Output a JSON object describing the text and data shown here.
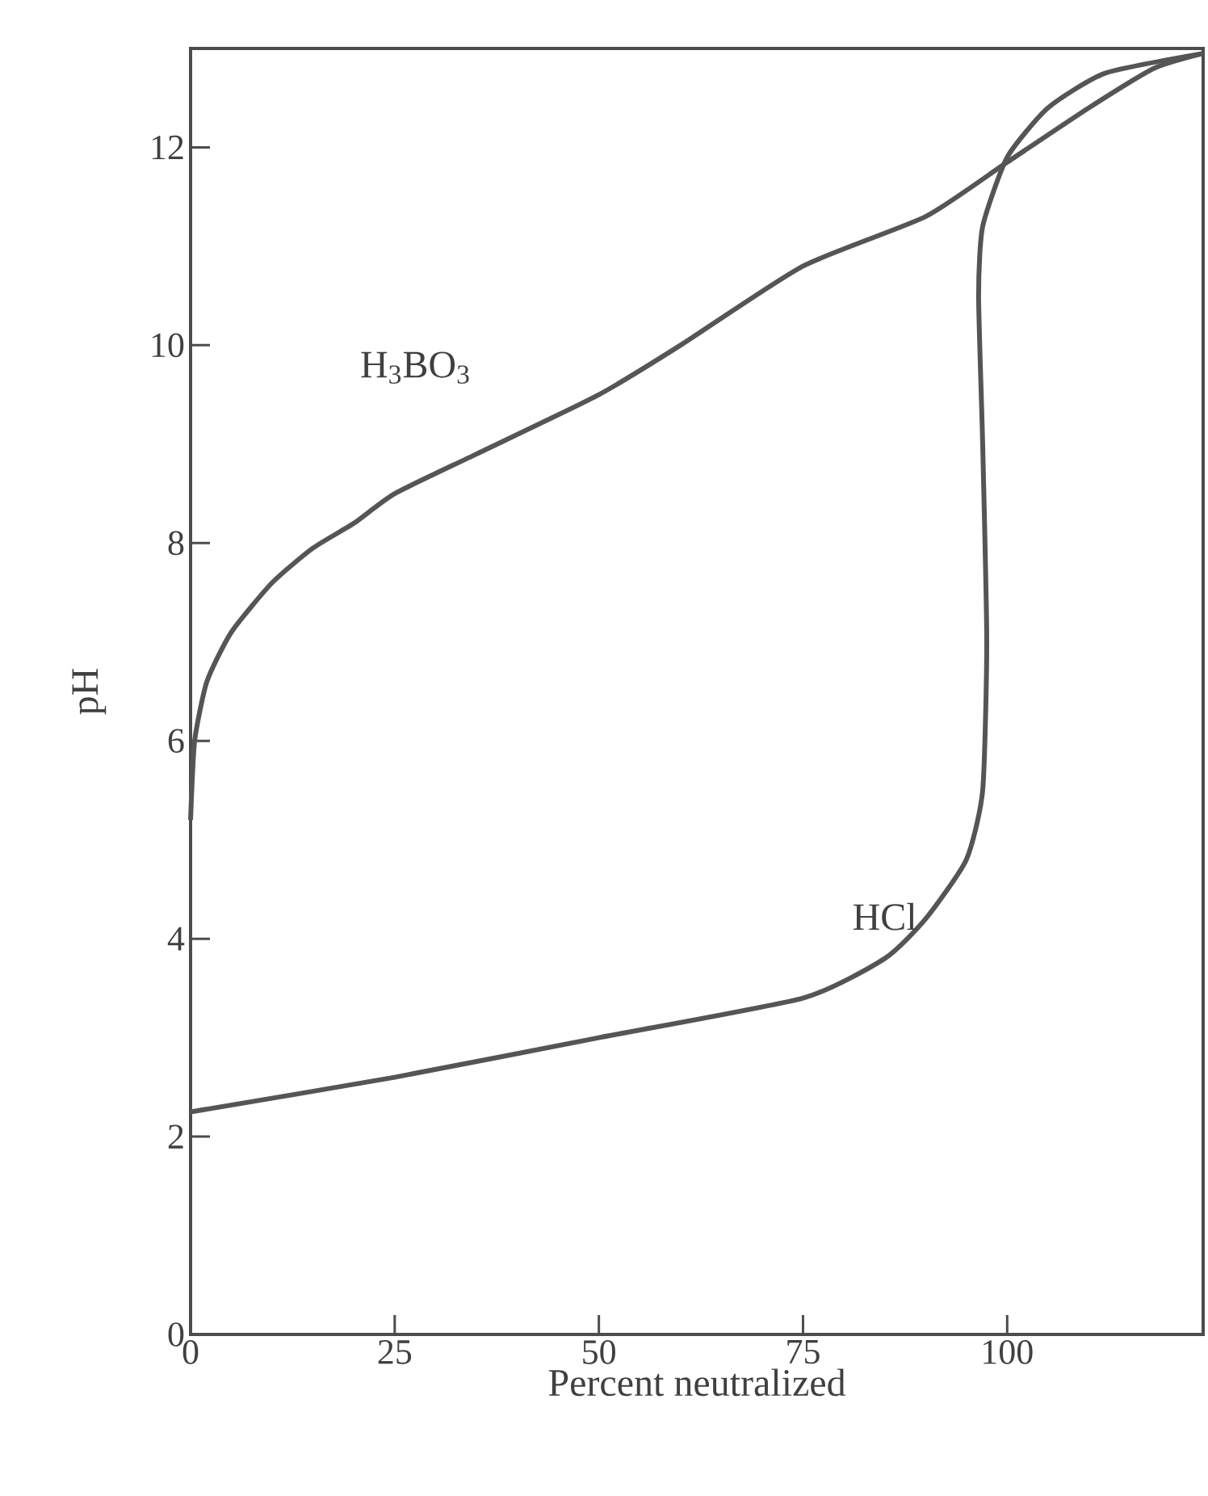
{
  "chart_data": {
    "type": "line",
    "xlabel": "Percent neutralized",
    "ylabel": "pH",
    "xlim": [
      0,
      124
    ],
    "ylim": [
      0,
      13
    ],
    "xticks": [
      0,
      25,
      50,
      75,
      100
    ],
    "yticks": [
      0,
      2,
      4,
      6,
      8,
      10,
      12
    ],
    "grid": false,
    "legend": false,
    "marker": "none",
    "line_style": "solid",
    "series": [
      {
        "name": "H$_{3}$BO$_{3}$",
        "color": "#555555",
        "x": [
          0,
          0.5,
          2,
          5,
          10,
          15,
          20,
          25,
          35,
          50,
          60,
          75,
          90,
          100,
          110,
          118,
          124
        ],
        "values": [
          5.2,
          6.0,
          6.6,
          7.1,
          7.6,
          7.95,
          8.2,
          8.5,
          8.9,
          9.5,
          10.0,
          10.8,
          11.3,
          11.85,
          12.4,
          12.8,
          12.95
        ]
      },
      {
        "name": "HCl",
        "color": "#555555",
        "x": [
          0,
          25,
          50,
          75,
          85,
          90,
          95,
          97,
          97.5,
          97,
          96.5,
          97,
          100,
          105,
          112,
          124
        ],
        "values": [
          2.25,
          2.6,
          3.0,
          3.4,
          3.8,
          4.2,
          4.8,
          5.5,
          7.0,
          9.0,
          10.5,
          11.2,
          11.9,
          12.4,
          12.75,
          12.95
        ]
      }
    ]
  }
}
